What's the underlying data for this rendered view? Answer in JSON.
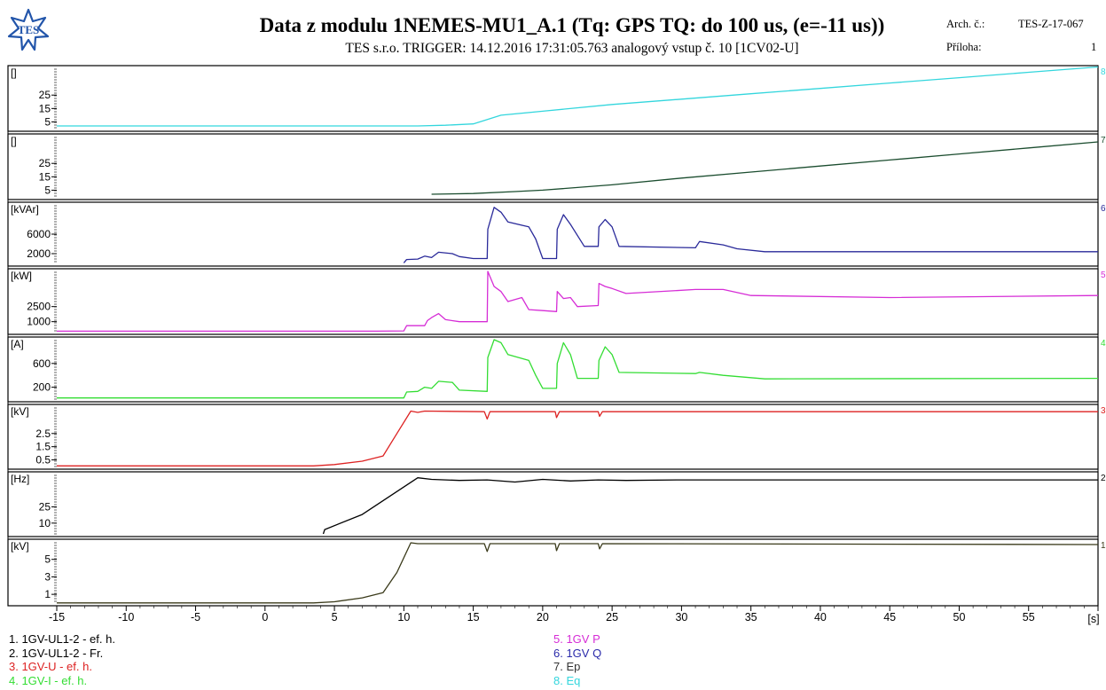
{
  "header": {
    "logo_text": "TES",
    "title": "Data z modulu 1NEMES-MU1_A.1 (Tq: GPS TQ: do 100 us, (e=-11 us))",
    "subtitle": "TES s.r.o.  TRIGGER: 14.12.2016 17:31:05.763 analogový vstup č. 10 [1CV02-U]",
    "arch_label": "Arch. č.:",
    "arch_value": "TES-Z-17-067",
    "priloha_label": "Příloha:",
    "priloha_value": "1"
  },
  "chart_data": {
    "type": "line",
    "x_ticks": [
      -15,
      -10,
      -5,
      0,
      5,
      10,
      15,
      20,
      25,
      30,
      35,
      40,
      45,
      50,
      55
    ],
    "x_unit": "[s]",
    "xlim": [
      -15,
      60
    ],
    "panels": [
      {
        "unit": "[]",
        "ticks": [
          25,
          15,
          5
        ],
        "ylim": [
          0,
          45
        ],
        "color": "#33d6dd",
        "points": [
          [
            -15,
            2
          ],
          [
            11,
            2
          ],
          [
            13,
            2.5
          ],
          [
            15,
            3.5
          ],
          [
            17,
            10
          ],
          [
            20,
            13
          ],
          [
            25,
            18
          ],
          [
            30,
            22
          ],
          [
            35,
            26
          ],
          [
            40,
            30
          ],
          [
            45,
            34
          ],
          [
            50,
            38
          ],
          [
            55,
            42
          ],
          [
            60,
            46
          ]
        ]
      },
      {
        "unit": "[]",
        "ticks": [
          25,
          15,
          5
        ],
        "ylim": [
          0,
          45
        ],
        "color": "#1b4d2f",
        "points": [
          [
            12,
            2
          ],
          [
            15,
            2.5
          ],
          [
            18,
            4
          ],
          [
            20,
            5
          ],
          [
            25,
            9
          ],
          [
            30,
            14
          ],
          [
            35,
            18.5
          ],
          [
            40,
            23
          ],
          [
            45,
            27.5
          ],
          [
            50,
            32
          ],
          [
            55,
            36.5
          ],
          [
            60,
            41
          ]
        ]
      },
      {
        "unit": "[kVAr]",
        "ticks": [
          6000,
          2000
        ],
        "ylim": [
          0,
          12000
        ],
        "color": "#2a2a9a",
        "points": [
          [
            10,
            100
          ],
          [
            10.2,
            800
          ],
          [
            11,
            900
          ],
          [
            11.5,
            1500
          ],
          [
            12,
            1200
          ],
          [
            12.5,
            2300
          ],
          [
            13.5,
            2000
          ],
          [
            14,
            1400
          ],
          [
            15,
            1000
          ],
          [
            16,
            1000
          ],
          [
            16.05,
            7000
          ],
          [
            16.5,
            11500
          ],
          [
            17,
            10500
          ],
          [
            17.5,
            8500
          ],
          [
            19,
            7500
          ],
          [
            19.5,
            5000
          ],
          [
            20,
            1000
          ],
          [
            21,
            1000
          ],
          [
            21.05,
            7000
          ],
          [
            21.5,
            10000
          ],
          [
            22,
            8000
          ],
          [
            23,
            3500
          ],
          [
            24,
            3500
          ],
          [
            24.05,
            7500
          ],
          [
            24.5,
            9000
          ],
          [
            25,
            7500
          ],
          [
            25.5,
            3500
          ],
          [
            31,
            3200
          ],
          [
            31.3,
            4500
          ],
          [
            33,
            3800
          ],
          [
            34,
            3000
          ],
          [
            36,
            2400
          ],
          [
            45,
            2400
          ],
          [
            60,
            2400
          ]
        ]
      },
      {
        "unit": "[kW]",
        "ticks": [
          2500,
          1000
        ],
        "ylim": [
          0,
          6000
        ],
        "color": "#d62dd6",
        "points": [
          [
            -15,
            50
          ],
          [
            8,
            50
          ],
          [
            10,
            80
          ],
          [
            10.2,
            600
          ],
          [
            11.5,
            600
          ],
          [
            11.7,
            1100
          ],
          [
            12,
            1400
          ],
          [
            12.5,
            1800
          ],
          [
            13,
            1200
          ],
          [
            14,
            1000
          ],
          [
            15.5,
            1000
          ],
          [
            16,
            1000
          ],
          [
            16.05,
            6000
          ],
          [
            16.5,
            4500
          ],
          [
            17,
            4000
          ],
          [
            17.5,
            3000
          ],
          [
            18.5,
            3400
          ],
          [
            19,
            2200
          ],
          [
            20,
            2100
          ],
          [
            21,
            2000
          ],
          [
            21.05,
            4000
          ],
          [
            21.5,
            3300
          ],
          [
            22,
            3400
          ],
          [
            22.5,
            2500
          ],
          [
            24,
            2600
          ],
          [
            24.05,
            4800
          ],
          [
            24.5,
            4500
          ],
          [
            25,
            4300
          ],
          [
            26,
            3800
          ],
          [
            31,
            4200
          ],
          [
            33,
            4200
          ],
          [
            35,
            3600
          ],
          [
            45,
            3400
          ],
          [
            60,
            3600
          ]
        ]
      },
      {
        "unit": "[A]",
        "ticks": [
          600,
          200
        ],
        "ylim": [
          0,
          1000
        ],
        "color": "#33dd33",
        "points": [
          [
            -15,
            20
          ],
          [
            10,
            20
          ],
          [
            10.2,
            120
          ],
          [
            11,
            130
          ],
          [
            11.5,
            200
          ],
          [
            12,
            180
          ],
          [
            12.5,
            300
          ],
          [
            13.5,
            280
          ],
          [
            14,
            150
          ],
          [
            16,
            130
          ],
          [
            16.05,
            700
          ],
          [
            16.5,
            1000
          ],
          [
            17,
            950
          ],
          [
            17.5,
            750
          ],
          [
            19,
            650
          ],
          [
            19.5,
            400
          ],
          [
            20,
            180
          ],
          [
            21,
            180
          ],
          [
            21.05,
            600
          ],
          [
            21.5,
            950
          ],
          [
            22,
            750
          ],
          [
            22.5,
            350
          ],
          [
            24,
            350
          ],
          [
            24.05,
            650
          ],
          [
            24.5,
            880
          ],
          [
            25,
            750
          ],
          [
            25.5,
            450
          ],
          [
            31,
            430
          ],
          [
            31.3,
            450
          ],
          [
            33,
            400
          ],
          [
            36,
            340
          ],
          [
            60,
            350
          ]
        ]
      },
      {
        "unit": "[kV]",
        "ticks": [
          2.5,
          1.5,
          0.5
        ],
        "ylim": [
          0,
          4.5
        ],
        "color": "#dd2222",
        "points": [
          [
            -15,
            0.05
          ],
          [
            3.5,
            0.05
          ],
          [
            5,
            0.15
          ],
          [
            7,
            0.4
          ],
          [
            8.5,
            0.8
          ],
          [
            9.5,
            2.5
          ],
          [
            10.5,
            4.2
          ],
          [
            11,
            4.1
          ],
          [
            11.5,
            4.2
          ],
          [
            15.8,
            4.15
          ],
          [
            16,
            3.6
          ],
          [
            16.2,
            4.15
          ],
          [
            20.9,
            4.15
          ],
          [
            21,
            3.7
          ],
          [
            21.2,
            4.15
          ],
          [
            24,
            4.15
          ],
          [
            24.1,
            3.8
          ],
          [
            24.3,
            4.15
          ],
          [
            60,
            4.15
          ]
        ]
      },
      {
        "unit": "[Hz]",
        "ticks": [
          25,
          10
        ],
        "ylim": [
          0,
          55
        ],
        "color": "#000000",
        "points": [
          [
            4.2,
            0
          ],
          [
            4.3,
            4
          ],
          [
            7,
            18
          ],
          [
            11,
            52
          ],
          [
            12,
            50.5
          ],
          [
            14,
            49.5
          ],
          [
            16,
            50
          ],
          [
            18,
            48
          ],
          [
            20,
            50.5
          ],
          [
            22,
            49
          ],
          [
            24,
            50
          ],
          [
            26,
            49.5
          ],
          [
            30,
            50
          ],
          [
            40,
            50
          ],
          [
            60,
            50
          ]
        ]
      },
      {
        "unit": "[kV]",
        "ticks": [
          5,
          3,
          1
        ],
        "ylim": [
          0,
          7
        ],
        "color": "#3a3a1a",
        "points": [
          [
            -15,
            0.02
          ],
          [
            3.5,
            0.02
          ],
          [
            5,
            0.15
          ],
          [
            7,
            0.6
          ],
          [
            8.5,
            1.2
          ],
          [
            9.5,
            3.5
          ],
          [
            10.5,
            6.9
          ],
          [
            11,
            6.8
          ],
          [
            15.8,
            6.8
          ],
          [
            16,
            5.9
          ],
          [
            16.2,
            6.8
          ],
          [
            20.9,
            6.8
          ],
          [
            21,
            6.0
          ],
          [
            21.2,
            6.8
          ],
          [
            24,
            6.8
          ],
          [
            24.1,
            6.2
          ],
          [
            24.3,
            6.8
          ],
          [
            60,
            6.7
          ]
        ]
      }
    ],
    "legend_left": [
      {
        "text": "1. 1GV-UL1-2 - ef. h.",
        "color": "#000000"
      },
      {
        "text": "2. 1GV-UL1-2 - Fr.",
        "color": "#000000"
      },
      {
        "text": "3. 1GV-U - ef. h.",
        "color": "#dd2222"
      },
      {
        "text": "4. 1GV-I - ef. h.",
        "color": "#33dd33"
      }
    ],
    "legend_right": [
      {
        "text": "5. 1GV P",
        "color": "#d62dd6"
      },
      {
        "text": "6. 1GV Q",
        "color": "#2a2aaa"
      },
      {
        "text": "7. Ep",
        "color": "#333333"
      },
      {
        "text": "8. Eq",
        "color": "#33d6dd"
      }
    ],
    "edge_labels": [
      "8",
      "7",
      "6",
      "5",
      "4",
      "3",
      "2",
      "1"
    ]
  }
}
